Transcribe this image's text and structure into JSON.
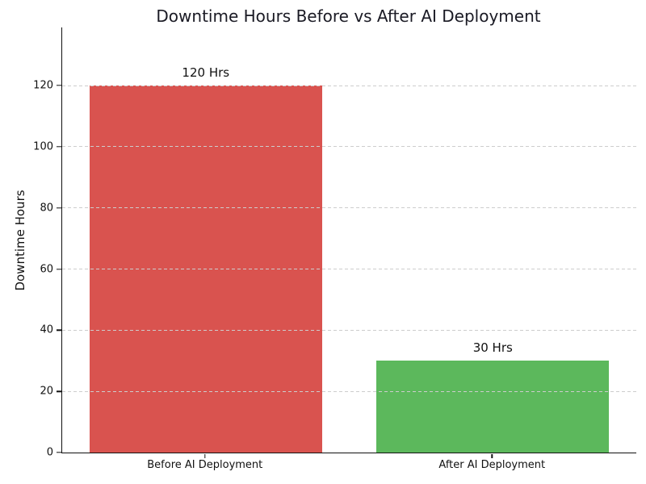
{
  "figure": {
    "background": "#ffffff"
  },
  "chart_data": {
    "type": "bar",
    "title": "Downtime Hours Before vs After AI Deployment",
    "xlabel": "",
    "ylabel": "Downtime Hours",
    "categories": [
      "Before AI Deployment",
      "After AI Deployment"
    ],
    "values": [
      120,
      30
    ],
    "bar_labels": [
      "120 Hrs",
      "30 Hrs"
    ],
    "bar_colors": [
      "#d9534f",
      "#5cb85c"
    ],
    "yticks": [
      0,
      20,
      40,
      60,
      80,
      100,
      120
    ],
    "ylim": [
      0,
      139
    ],
    "grid": {
      "axis": "y",
      "style": "dashed",
      "color": "#cdcdcd",
      "drawn_over_bars": true
    },
    "legend": null,
    "colors": {
      "title": "#1a1a24",
      "axis_spine": "#111111",
      "tick_label": "#111111"
    }
  }
}
